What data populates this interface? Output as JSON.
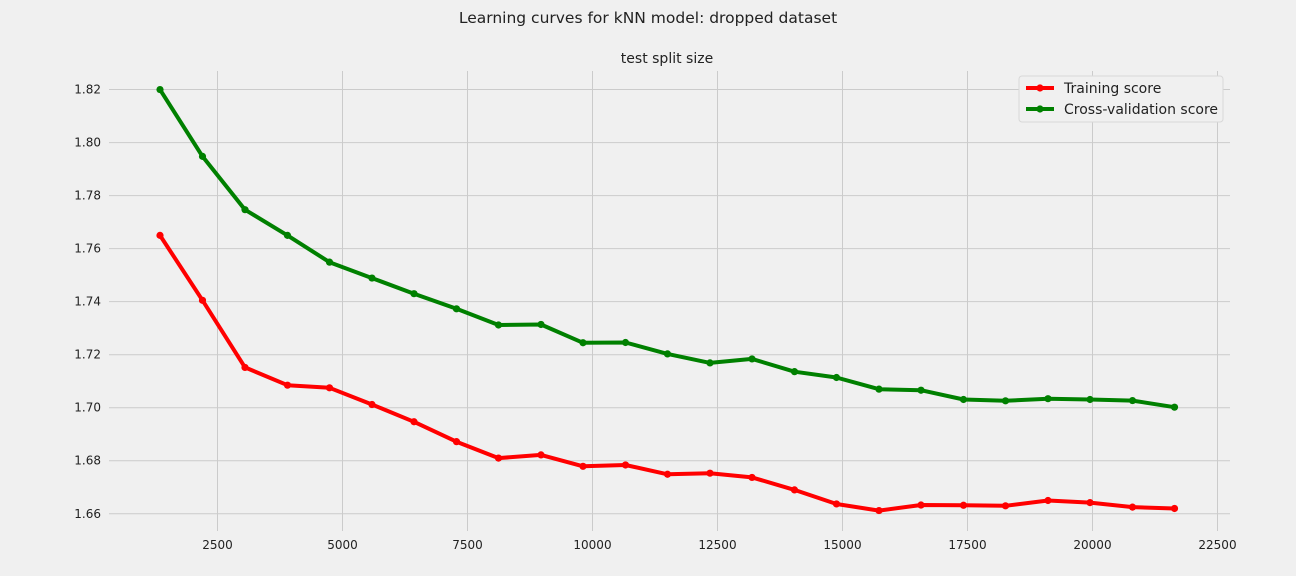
{
  "figure": {
    "suptitle": "Learning curves for kNN model: dropped dataset"
  },
  "chart_data": {
    "type": "line",
    "title": "test split size",
    "xlabel": "",
    "ylabel": "",
    "xlim": [
      330,
      22750
    ],
    "ylim": [
      1.6535,
      1.827
    ],
    "xticks": [
      2500,
      5000,
      7500,
      10000,
      12500,
      15000,
      17500,
      20000,
      22500
    ],
    "yticks": [
      1.66,
      1.68,
      1.7,
      1.72,
      1.74,
      1.76,
      1.78,
      1.8,
      1.82
    ],
    "grid": true,
    "legend_position": "top-right",
    "x": [
      1350,
      2200,
      3050,
      3900,
      4740,
      5590,
      6430,
      7280,
      8120,
      8970,
      9810,
      10660,
      11500,
      12350,
      13190,
      14040,
      14880,
      15730,
      16570,
      17420,
      18260,
      19110,
      19950,
      20800,
      21640
    ],
    "series": [
      {
        "name": "Training score",
        "color": "#ff0000",
        "values": [
          1.765,
          1.7405,
          1.7152,
          1.7085,
          1.7075,
          1.7012,
          1.6947,
          1.6872,
          1.681,
          1.6822,
          1.6779,
          1.6784,
          1.6749,
          1.6753,
          1.6737,
          1.669,
          1.6637,
          1.6612,
          1.6633,
          1.6632,
          1.663,
          1.665,
          1.6642,
          1.6625,
          1.662
        ]
      },
      {
        "name": "Cross-validation score",
        "color": "#008000",
        "values": [
          1.82,
          1.7948,
          1.7747,
          1.765,
          1.7549,
          1.7489,
          1.743,
          1.7373,
          1.7312,
          1.7314,
          1.7245,
          1.7246,
          1.7203,
          1.7169,
          1.7184,
          1.7136,
          1.7114,
          1.707,
          1.7066,
          1.7031,
          1.7026,
          1.7034,
          1.7031,
          1.7027,
          1.7002
        ]
      }
    ]
  }
}
